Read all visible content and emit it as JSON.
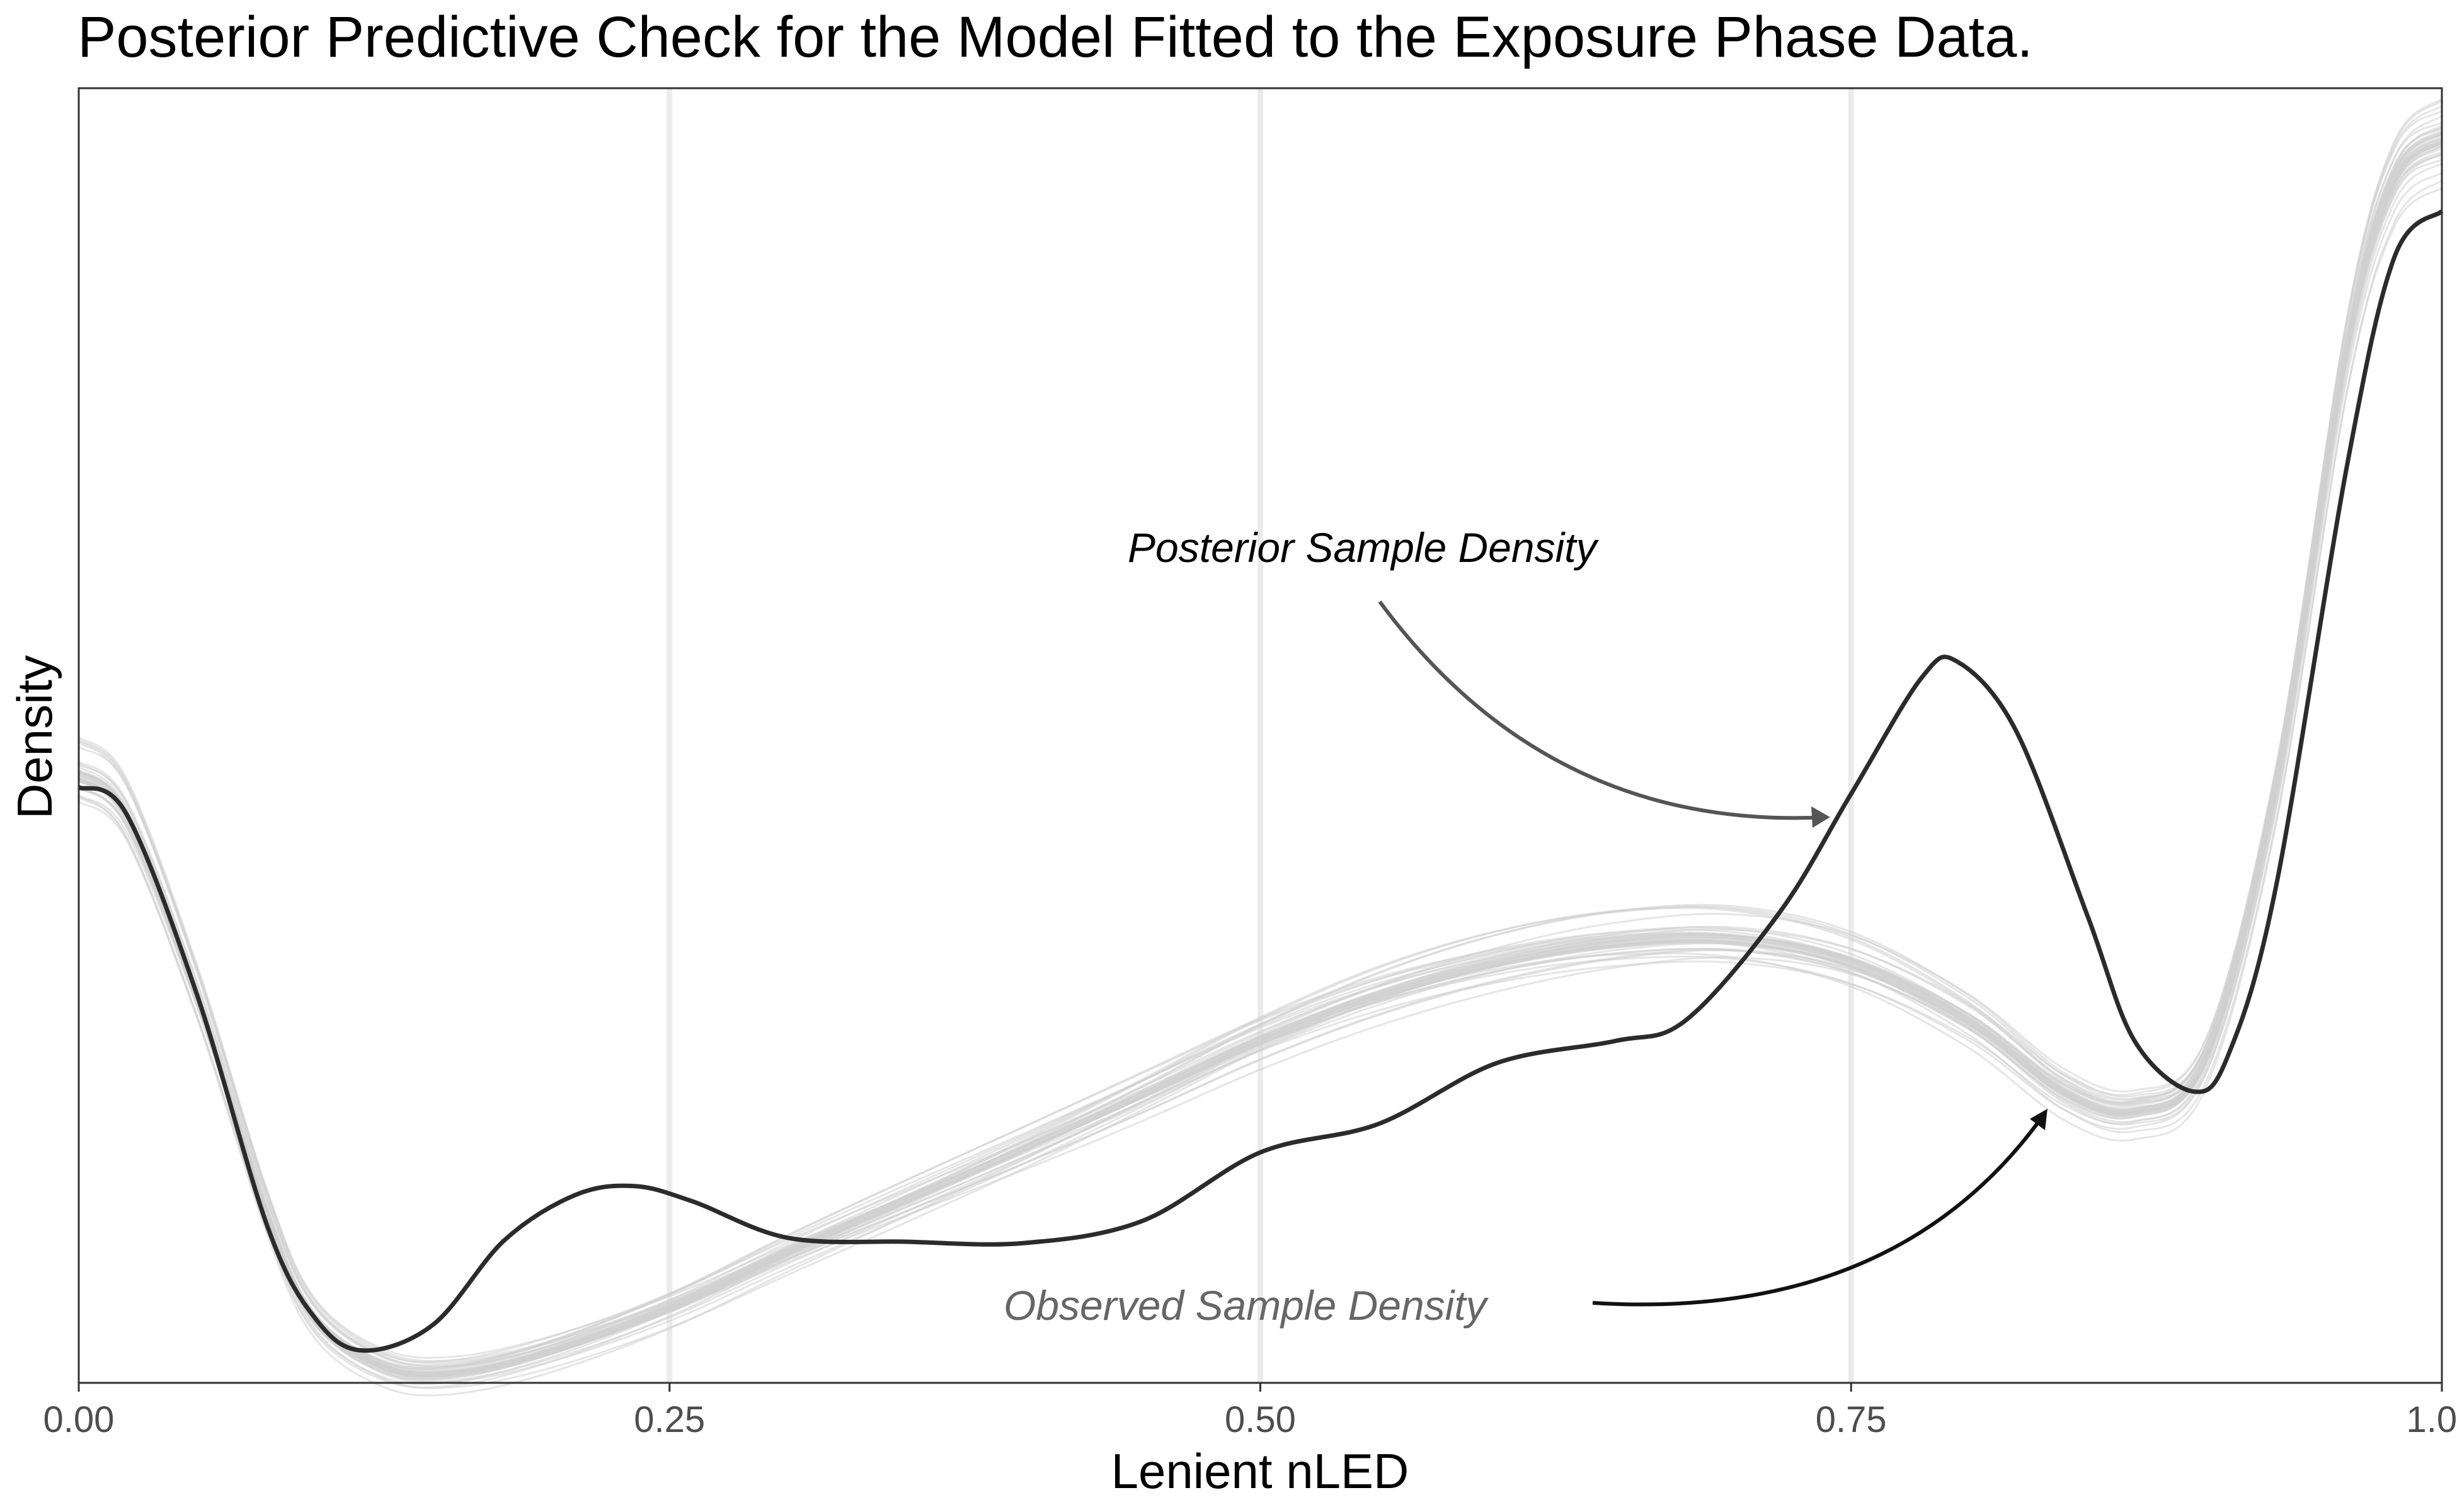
{
  "chart_data": {
    "type": "line",
    "title": "Posterior Predictive Check for the Model Fitted to the Exposure Phase Data.",
    "xlabel": "Lenient nLED",
    "ylabel": "Density",
    "xlim": [
      0,
      1
    ],
    "ylim": [
      0,
      1
    ],
    "x_ticks": [
      0,
      0.25,
      0.5,
      0.75,
      1
    ],
    "x_tick_labels": [
      "0.00",
      "0.25",
      "0.50",
      "0.75",
      "1.00"
    ],
    "y_ticks_shown": false,
    "grid": "vertical major gridlines only",
    "series": [
      {
        "name": "Observed Sample Density",
        "color": "#2b2b2b",
        "x": [
          0,
          0.02,
          0.05,
          0.08,
          0.1,
          0.12,
          0.15,
          0.18,
          0.21,
          0.235,
          0.26,
          0.3,
          0.35,
          0.4,
          0.45,
          0.5,
          0.55,
          0.6,
          0.65,
          0.68,
          0.72,
          0.75,
          0.78,
          0.795,
          0.82,
          0.85,
          0.87,
          0.895,
          0.91,
          0.93,
          0.96,
          0.98,
          1.0
        ],
        "y": [
          0.46,
          0.44,
          0.3,
          0.12,
          0.05,
          0.025,
          0.045,
          0.11,
          0.145,
          0.152,
          0.14,
          0.112,
          0.109,
          0.108,
          0.125,
          0.178,
          0.2,
          0.247,
          0.264,
          0.28,
          0.364,
          0.455,
          0.545,
          0.557,
          0.503,
          0.361,
          0.264,
          0.225,
          0.255,
          0.385,
          0.71,
          0.87,
          0.905
        ]
      },
      {
        "name": "Posterior Sample Density",
        "color": "#cfcfcf",
        "draws": 40,
        "x": [
          0,
          0.02,
          0.05,
          0.08,
          0.1,
          0.13,
          0.16,
          0.2,
          0.25,
          0.3,
          0.35,
          0.4,
          0.45,
          0.5,
          0.55,
          0.6,
          0.65,
          0.7,
          0.75,
          0.8,
          0.84,
          0.87,
          0.9,
          0.93,
          0.96,
          0.98,
          1.0
        ],
        "y": [
          0.47,
          0.44,
          0.3,
          0.13,
          0.05,
          0.012,
          0.008,
          0.025,
          0.058,
          0.1,
          0.14,
          0.18,
          0.222,
          0.265,
          0.3,
          0.325,
          0.34,
          0.343,
          0.325,
          0.28,
          0.225,
          0.21,
          0.25,
          0.46,
          0.8,
          0.93,
          0.96
        ]
      }
    ],
    "annotations": [
      {
        "text": "Posterior Sample Density",
        "color": "#000000"
      },
      {
        "text": "Observed Sample Density",
        "color": "#666666"
      }
    ]
  }
}
